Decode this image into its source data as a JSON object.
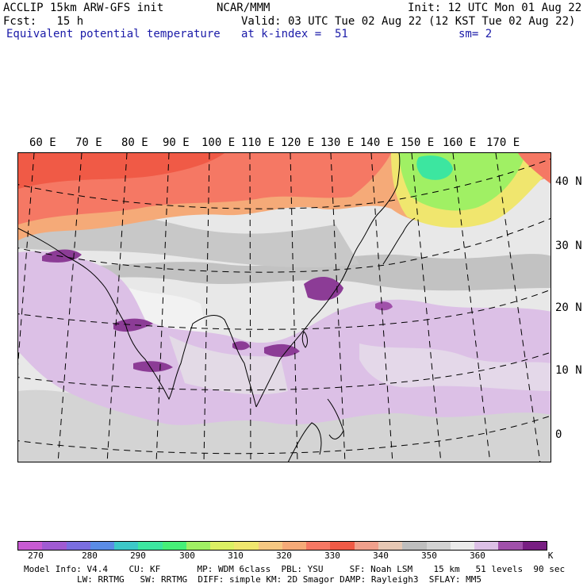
{
  "header": {
    "line1_left": "ACCLIP 15km ARW-GFS init",
    "line1_center": "NCAR/MMM",
    "line1_right": "Init: 12 UTC Mon 01 Aug 22",
    "line2_left": "Fcst:   15 h",
    "line2_right": "Valid: 03 UTC Tue 02 Aug 22 (12 KST Tue 02 Aug 22)",
    "line3_left": "Equivalent potential temperature",
    "line3_center": "at k-index =  51",
    "line3_right": "sm= 2"
  },
  "map": {
    "lon_labels": [
      "60 E",
      "70 E",
      "80 E",
      "90 E",
      "100 E",
      "110 E",
      "120 E",
      "130 E",
      "140 E",
      "150 E",
      "160 E",
      "170 E"
    ],
    "lat_labels": [
      "40 N",
      "30 N",
      "20 N",
      "10 N",
      "0"
    ]
  },
  "colorbar": {
    "colors": [
      "#c85ad2",
      "#a05ad2",
      "#7a6ee0",
      "#5a8ce6",
      "#3cc8c8",
      "#3ce6a0",
      "#46f078",
      "#a0f064",
      "#dcf064",
      "#f0e66e",
      "#f5c882",
      "#f5aa78",
      "#f57864",
      "#f05a46",
      "#f0a08c",
      "#e6c8b4",
      "#bebebe",
      "#d2d2d2",
      "#ebebeb",
      "#dcc0e6",
      "#a050aa",
      "#781e82"
    ],
    "labels": [
      "270",
      "280",
      "290",
      "300",
      "310",
      "320",
      "330",
      "340",
      "350",
      "360",
      "K"
    ]
  },
  "footer": {
    "line1": "Model Info: V4.4    CU: KF       MP: WDM 6class  PBL: YSU     SF: Noah LSM    15 km   51 levels  90 sec",
    "line2": "LW: RRTMG   SW: RRTMG  DIFF: simple KM: 2D Smagor DAMP: Rayleigh3  SFLAY: MM5"
  }
}
